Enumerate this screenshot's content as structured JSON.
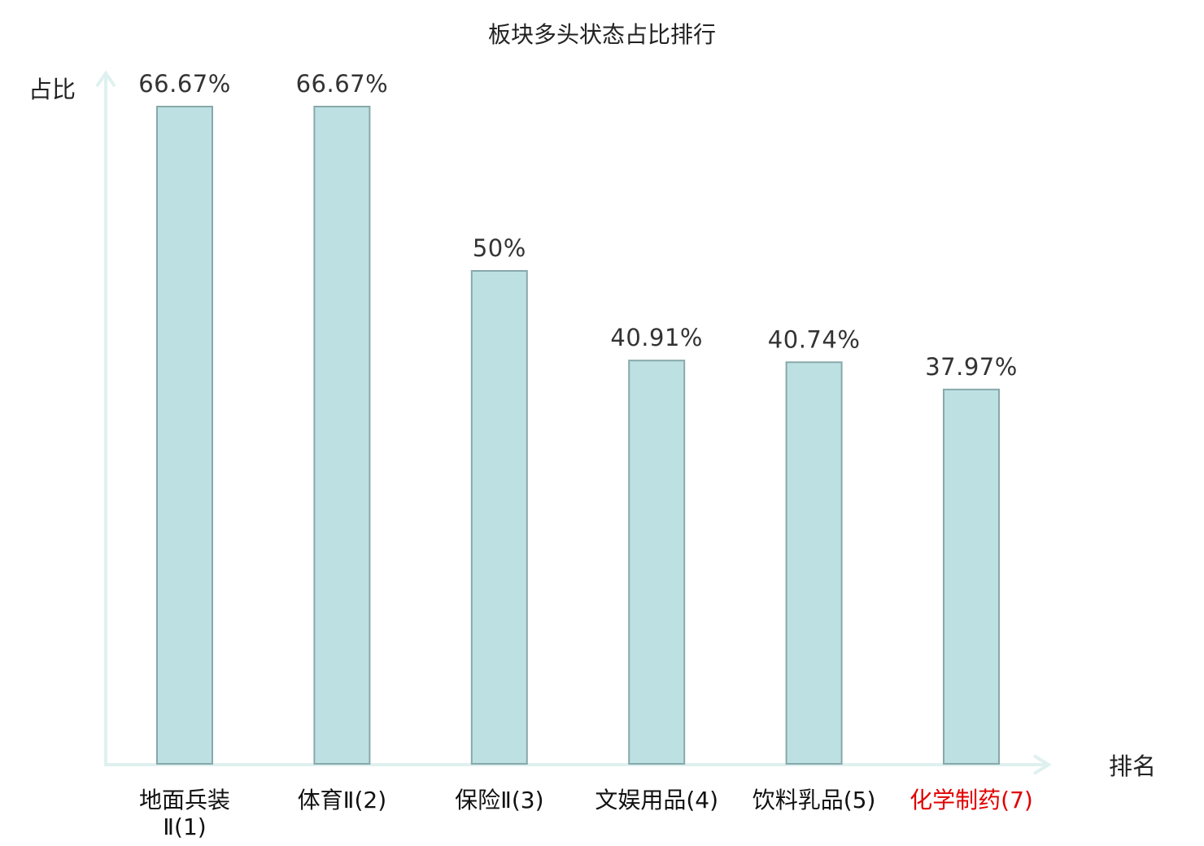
{
  "chart_data": {
    "type": "bar",
    "title": "板块多头状态占比排行",
    "ylabel": "占比",
    "xlabel": "排名",
    "ylim": [
      0,
      66.67
    ],
    "categories": [
      [
        "地面兵装",
        "Ⅱ(1)"
      ],
      [
        "体育Ⅱ(2)"
      ],
      [
        "保险Ⅱ(3)"
      ],
      [
        "文娱用品(4)"
      ],
      [
        "饮料乳品(5)"
      ],
      [
        "化学制药(7)"
      ]
    ],
    "values": [
      66.67,
      66.67,
      50,
      40.91,
      40.74,
      37.97
    ],
    "value_labels": [
      "66.67%",
      "66.67%",
      "50%",
      "40.91%",
      "40.74%",
      "37.97%"
    ],
    "highlight_index": 5,
    "colors": {
      "bar_fill": "#bde1e3",
      "bar_stroke": "#88a8aa",
      "axis": "#dff1ef",
      "highlight_text": "#e00000"
    },
    "grid": false,
    "legend": "none"
  }
}
